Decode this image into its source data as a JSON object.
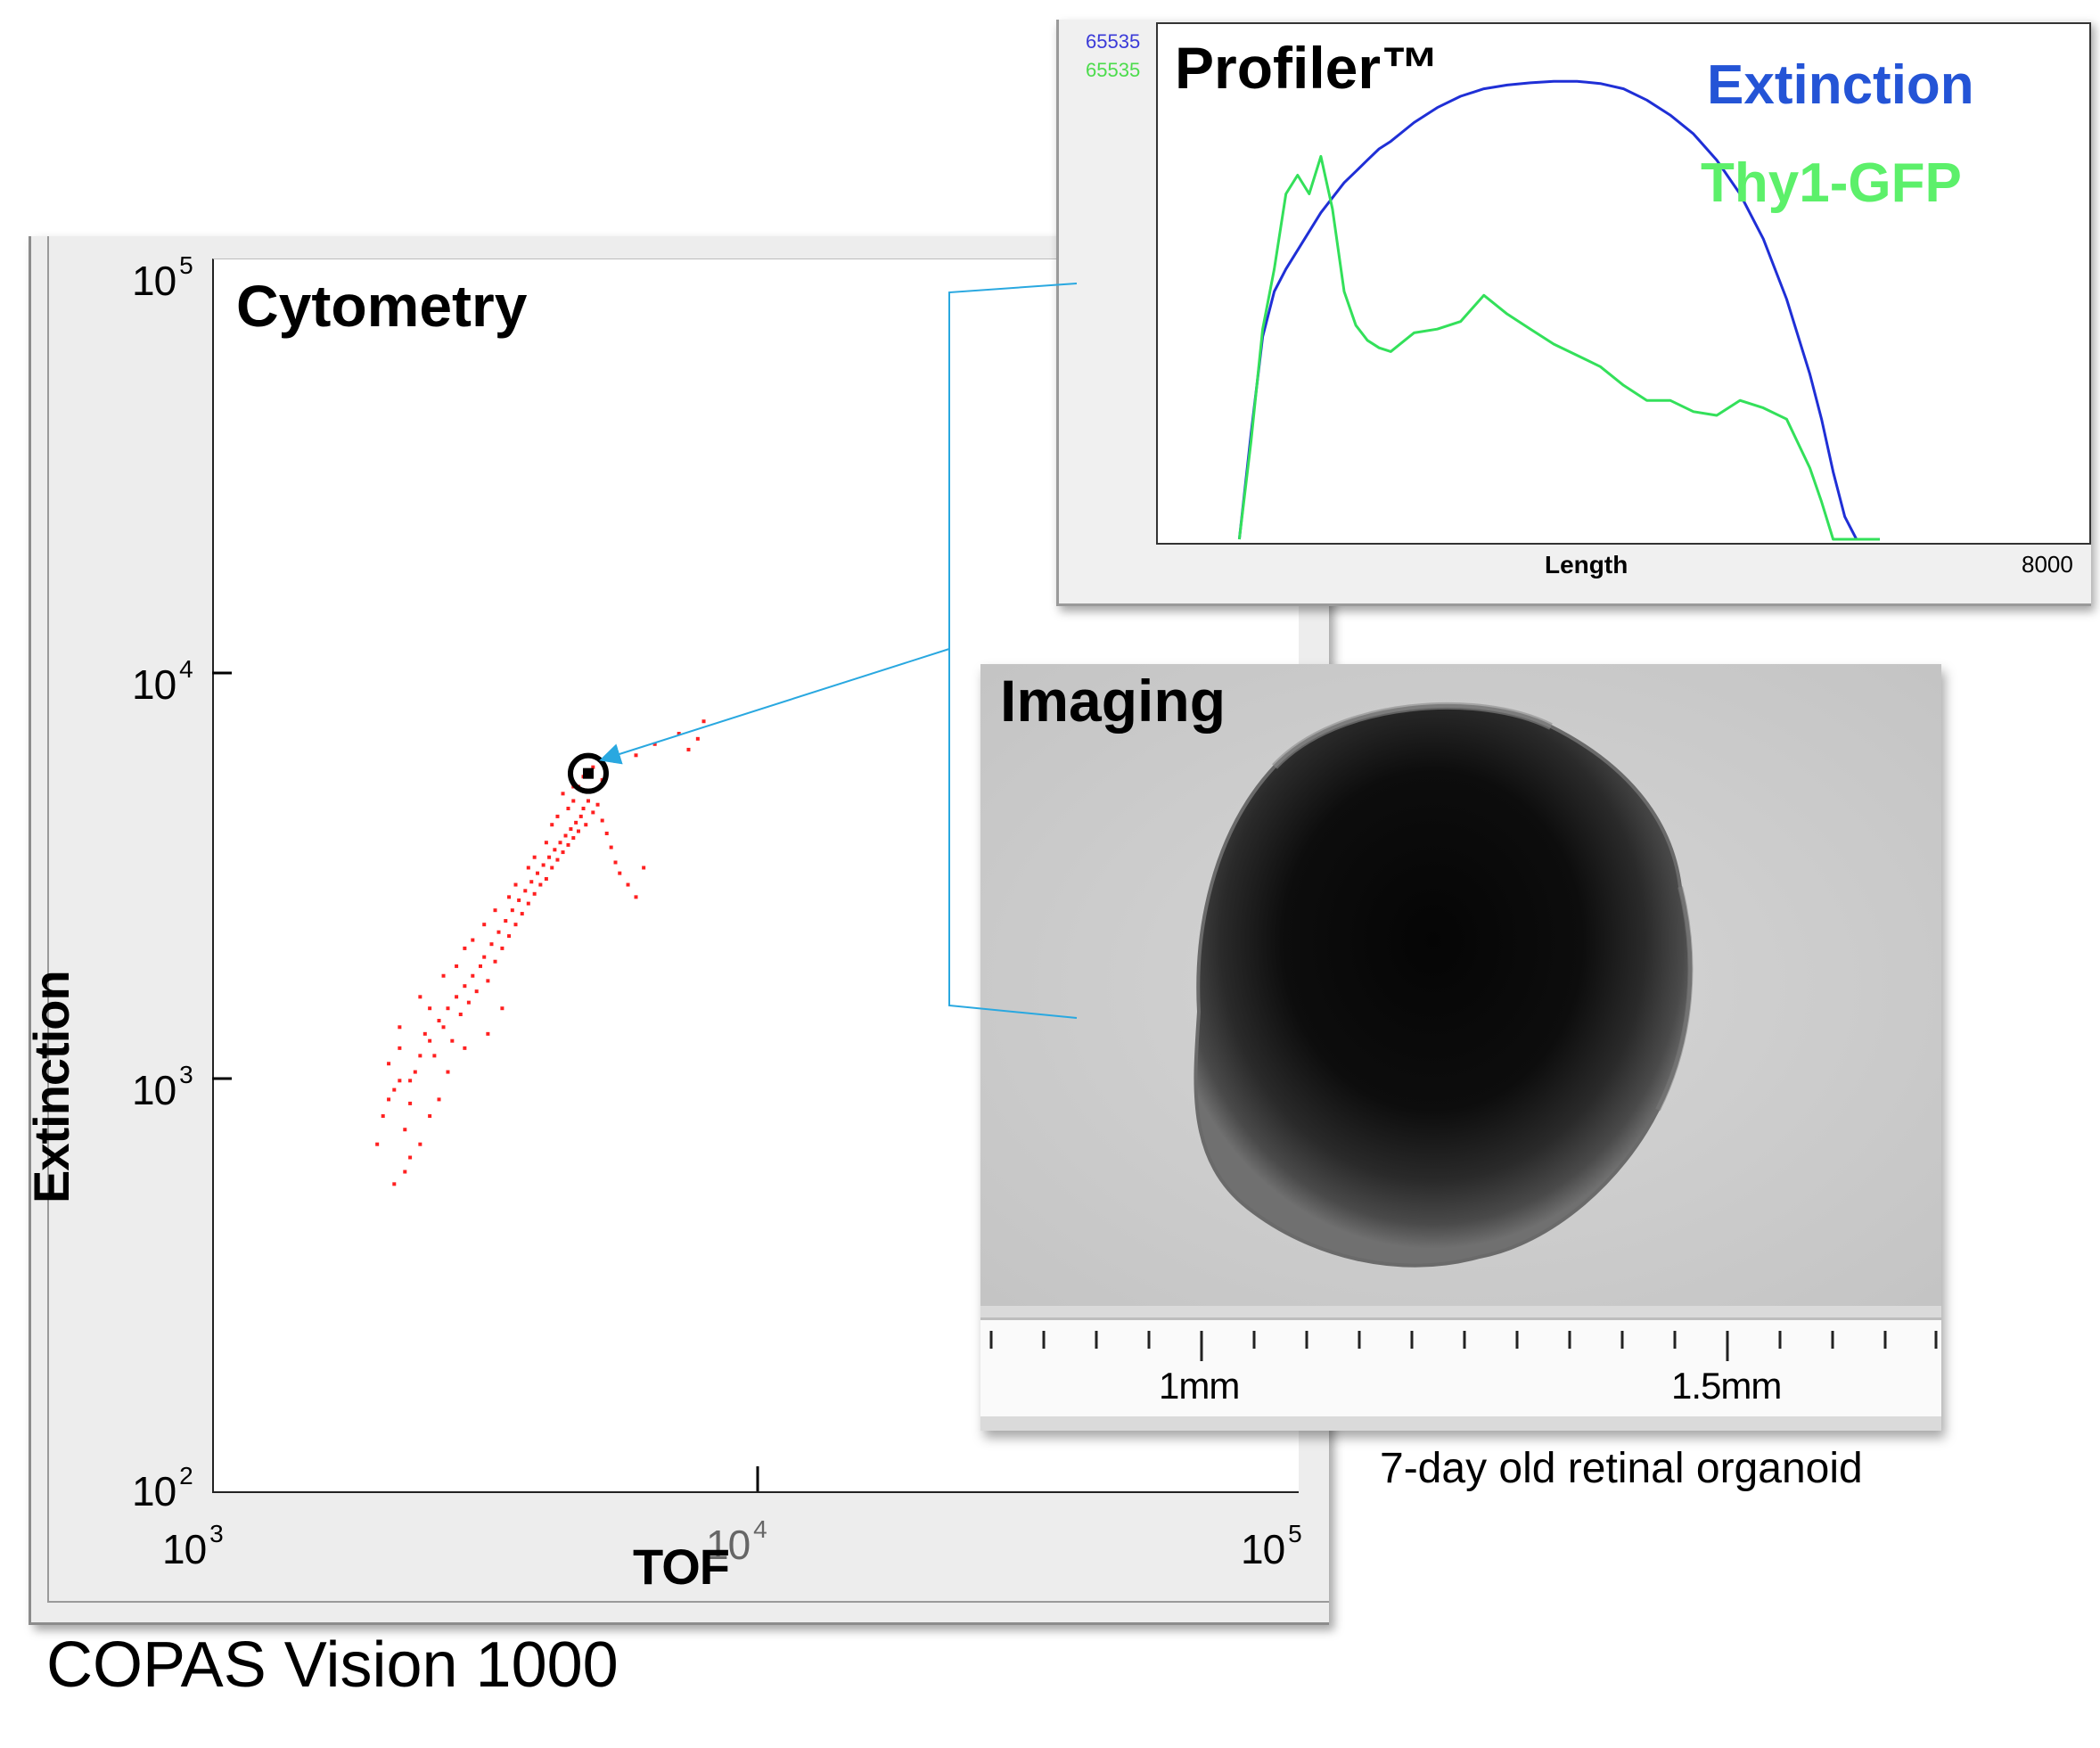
{
  "cytometry": {
    "title": "Cytometry",
    "xlabel": "TOF",
    "ylabel": "Extinction",
    "x_ticks": [
      {
        "base": "10",
        "exp": "3"
      },
      {
        "base": "10",
        "exp": "4"
      },
      {
        "base": "10",
        "exp": "5"
      }
    ],
    "y_ticks": [
      {
        "base": "10",
        "exp": "5"
      },
      {
        "base": "10",
        "exp": "4"
      },
      {
        "base": "10",
        "exp": "3"
      },
      {
        "base": "10",
        "exp": "2"
      }
    ],
    "caption": "COPAS Vision 1000",
    "point_color": "#ff2020"
  },
  "profiler": {
    "title": "Profiler™",
    "legend_extinction": "Extinction",
    "legend_gfp": "Thy1-GFP",
    "ymax_extinction": "65535",
    "ymax_gfp": "65535",
    "xlabel": "Length",
    "xmax": "8000",
    "extinction_color": "#1f2fd6",
    "gfp_color": "#33e05a"
  },
  "imaging": {
    "title": "Imaging",
    "ruler_labels": [
      "1mm",
      "1.5mm"
    ],
    "caption": "7-day old retinal organoid"
  },
  "connector_color": "#29a8e0",
  "chart_data": [
    {
      "type": "scatter",
      "title": "Cytometry",
      "xlabel": "TOF",
      "ylabel": "Extinction",
      "xscale": "log",
      "yscale": "log",
      "xlim": [
        1000,
        100000
      ],
      "ylim": [
        100,
        100000
      ],
      "highlighted_point": {
        "x": 4900,
        "y": 5600
      },
      "series": [
        {
          "points": [
            [
              2000,
              700
            ],
            [
              2050,
              820
            ],
            [
              2100,
              900
            ],
            [
              2150,
              950
            ],
            [
              2200,
              1000
            ],
            [
              2250,
              760
            ],
            [
              2300,
              880
            ],
            [
              2350,
              1050
            ],
            [
              2100,
              1100
            ],
            [
              2200,
              1200
            ],
            [
              2300,
              1000
            ],
            [
              2400,
              1150
            ],
            [
              2450,
              1300
            ],
            [
              2500,
              1250
            ],
            [
              2550,
              1150
            ],
            [
              2600,
              1400
            ],
            [
              2650,
              1350
            ],
            [
              2700,
              1500
            ],
            [
              2750,
              1250
            ],
            [
              2800,
              1600
            ],
            [
              2850,
              1450
            ],
            [
              2900,
              1700
            ],
            [
              2950,
              1550
            ],
            [
              3000,
              1800
            ],
            [
              3050,
              1650
            ],
            [
              3100,
              1900
            ],
            [
              3150,
              2000
            ],
            [
              3200,
              1750
            ],
            [
              3250,
              2150
            ],
            [
              3300,
              1950
            ],
            [
              3350,
              2300
            ],
            [
              3400,
              2100
            ],
            [
              3450,
              2450
            ],
            [
              3500,
              2250
            ],
            [
              3550,
              2600
            ],
            [
              3600,
              2400
            ],
            [
              3650,
              2750
            ],
            [
              3700,
              2550
            ],
            [
              3750,
              2900
            ],
            [
              3800,
              2700
            ],
            [
              3850,
              3050
            ],
            [
              3900,
              2850
            ],
            [
              3950,
              3200
            ],
            [
              4000,
              3000
            ],
            [
              4050,
              3350
            ],
            [
              4100,
              3100
            ],
            [
              4150,
              3500
            ],
            [
              4200,
              3300
            ],
            [
              4250,
              3650
            ],
            [
              4300,
              3450
            ],
            [
              4350,
              3800
            ],
            [
              4400,
              3600
            ],
            [
              4450,
              3950
            ],
            [
              4500,
              3750
            ],
            [
              4550,
              4100
            ],
            [
              4600,
              3900
            ],
            [
              4650,
              4250
            ],
            [
              4700,
              4050
            ],
            [
              4750,
              4400
            ],
            [
              4800,
              4600
            ],
            [
              4850,
              4200
            ],
            [
              4900,
              4800
            ],
            [
              5000,
              4500
            ],
            [
              5100,
              4700
            ],
            [
              5200,
              4300
            ],
            [
              5300,
              4000
            ],
            [
              5400,
              3700
            ],
            [
              5500,
              3400
            ],
            [
              5600,
              3200
            ],
            [
              5800,
              3000
            ],
            [
              6000,
              2800
            ],
            [
              6200,
              3300
            ],
            [
              4400,
              5000
            ],
            [
              4600,
              4800
            ],
            [
              4700,
              5200
            ],
            [
              5000,
              5800
            ],
            [
              5200,
              5400
            ],
            [
              5500,
              6000
            ],
            [
              6000,
              6200
            ],
            [
              6500,
              6600
            ],
            [
              7200,
              7000
            ],
            [
              7800,
              6800
            ],
            [
              8000,
              7500
            ],
            [
              7500,
              6400
            ],
            [
              3200,
              1300
            ],
            [
              3400,
              1500
            ],
            [
              2900,
              1200
            ],
            [
              2700,
              1050
            ],
            [
              2600,
              900
            ],
            [
              2500,
              820
            ],
            [
              2400,
              700
            ],
            [
              2300,
              650
            ],
            [
              2250,
              600
            ],
            [
              2150,
              560
            ],
            [
              2500,
              1500
            ],
            [
              2800,
              1900
            ],
            [
              3000,
              2200
            ],
            [
              3300,
              2600
            ],
            [
              3600,
              3000
            ],
            [
              3900,
              3500
            ],
            [
              4200,
              4200
            ],
            [
              4500,
              4600
            ],
            [
              2200,
              1350
            ],
            [
              2400,
              1600
            ],
            [
              2650,
              1800
            ],
            [
              2900,
              2100
            ],
            [
              3150,
              2400
            ],
            [
              3500,
              2800
            ],
            [
              3800,
              3300
            ],
            [
              4100,
              3800
            ],
            [
              4300,
              4400
            ],
            [
              4600,
              5200
            ],
            [
              4800,
              5500
            ],
            [
              4900,
              5600
            ]
          ]
        }
      ]
    },
    {
      "type": "line",
      "title": "Profiler™",
      "xlabel": "Length",
      "xlim": [
        0,
        8000
      ],
      "ylim": [
        0,
        65535
      ],
      "x": [
        700,
        800,
        900,
        1000,
        1100,
        1200,
        1300,
        1400,
        1500,
        1600,
        1700,
        1800,
        1900,
        2000,
        2200,
        2400,
        2600,
        2800,
        3000,
        3200,
        3400,
        3600,
        3800,
        4000,
        4200,
        4400,
        4600,
        4800,
        5000,
        5200,
        5400,
        5600,
        5700,
        5800,
        5900,
        6000,
        6100,
        6200
      ],
      "series": [
        {
          "name": "Extinction",
          "values": [
            0,
            14000,
            27000,
            33000,
            36000,
            38500,
            41000,
            43500,
            45500,
            47500,
            49000,
            50500,
            52000,
            53000,
            55500,
            57500,
            59000,
            60000,
            60500,
            60800,
            61000,
            61000,
            60700,
            60000,
            58500,
            56500,
            54000,
            50500,
            46000,
            40000,
            32000,
            22000,
            16000,
            9000,
            3000,
            0,
            0,
            0
          ]
        },
        {
          "name": "Thy1-GFP",
          "values": [
            0,
            13000,
            28000,
            36000,
            46000,
            48500,
            46000,
            51000,
            44000,
            33000,
            28500,
            26500,
            25500,
            25000,
            27500,
            28000,
            29000,
            32500,
            30000,
            28000,
            26000,
            24500,
            23000,
            20500,
            18500,
            18500,
            17000,
            16500,
            18500,
            17500,
            16000,
            9500,
            5000,
            0,
            0,
            0,
            0,
            0
          ]
        }
      ]
    }
  ]
}
